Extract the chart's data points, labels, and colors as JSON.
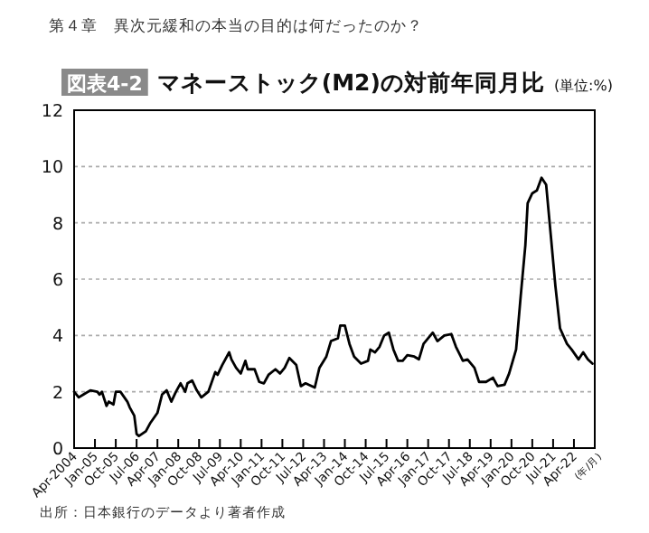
{
  "chart_data": {
    "type": "line",
    "title": "マネーストック(M2)の対前年同月比",
    "ylabel": "(単位:%)",
    "xlabel": "(年/月)",
    "annotations": [
      "第４章　異次元緩和の本当の目的は何だったのか？",
      "図表4-2",
      "出所：日本銀行のデータより著者作成"
    ],
    "x": [
      "2004-04",
      "2004-06",
      "2004-08",
      "2004-11",
      "2005-02",
      "2005-03",
      "2005-04",
      "2005-06",
      "2005-07",
      "2005-09",
      "2005-10",
      "2005-12",
      "2006-03",
      "2006-04",
      "2006-06",
      "2006-07",
      "2006-08",
      "2006-11",
      "2007-01",
      "2007-04",
      "2007-06",
      "2007-08",
      "2007-10",
      "2007-12",
      "2008-02",
      "2008-04",
      "2008-05",
      "2008-07",
      "2008-09",
      "2008-11",
      "2009-02",
      "2009-05",
      "2009-06",
      "2009-08",
      "2009-11",
      "2009-12",
      "2010-02",
      "2010-04",
      "2010-06",
      "2010-07",
      "2010-10",
      "2010-12",
      "2011-02",
      "2011-04",
      "2011-07",
      "2011-09",
      "2011-11",
      "2012-01",
      "2012-04",
      "2012-06",
      "2012-08",
      "2012-12",
      "2013-02",
      "2013-05",
      "2013-07",
      "2013-10",
      "2013-11",
      "2014-01",
      "2014-03",
      "2014-05",
      "2014-08",
      "2014-11",
      "2014-12",
      "2015-02",
      "2015-04",
      "2015-06",
      "2015-08",
      "2015-10",
      "2015-12",
      "2016-02",
      "2016-04",
      "2016-07",
      "2016-09",
      "2016-11",
      "2017-01",
      "2017-03",
      "2017-05",
      "2017-08",
      "2017-11",
      "2018-01",
      "2018-04",
      "2018-06",
      "2018-09",
      "2018-11",
      "2019-02",
      "2019-05",
      "2019-07",
      "2019-10",
      "2019-12",
      "2020-03",
      "2020-05",
      "2020-07",
      "2020-08",
      "2020-10",
      "2020-12",
      "2021-02",
      "2021-04",
      "2021-06",
      "2021-08",
      "2021-10",
      "2022-01",
      "2022-03",
      "2022-06",
      "2022-08",
      "2022-10",
      "2022-12"
    ],
    "series": [
      {
        "color": "#000000",
        "values": [
          2.0,
          1.8,
          1.9,
          2.05,
          2.0,
          1.9,
          2.0,
          1.5,
          1.65,
          1.55,
          2.0,
          2.0,
          1.65,
          1.45,
          1.15,
          0.5,
          0.43,
          0.6,
          0.9,
          1.25,
          1.9,
          2.05,
          1.65,
          2.0,
          2.3,
          2.0,
          2.3,
          2.4,
          2.05,
          1.8,
          2.0,
          2.7,
          2.6,
          2.95,
          3.4,
          3.15,
          2.85,
          2.65,
          3.1,
          2.8,
          2.8,
          2.35,
          2.3,
          2.6,
          2.8,
          2.65,
          2.85,
          3.2,
          2.95,
          2.2,
          2.3,
          2.15,
          2.85,
          3.25,
          3.8,
          3.9,
          4.35,
          4.35,
          3.7,
          3.25,
          3.0,
          3.1,
          3.5,
          3.4,
          3.6,
          4.0,
          4.1,
          3.5,
          3.1,
          3.1,
          3.3,
          3.25,
          3.15,
          3.7,
          3.9,
          4.1,
          3.8,
          4.0,
          4.05,
          3.6,
          3.1,
          3.15,
          2.85,
          2.35,
          2.35,
          2.5,
          2.2,
          2.25,
          2.65,
          3.5,
          5.4,
          7.2,
          8.7,
          9.05,
          9.15,
          9.6,
          9.35,
          7.55,
          5.75,
          4.25,
          3.7,
          3.5,
          3.15,
          3.4,
          3.15,
          3.0
        ]
      }
    ],
    "xlim": [
      "2004-04",
      "2023-01"
    ],
    "xticks": [
      {
        "value": "2004-04",
        "label": "Apr-2004"
      },
      {
        "value": "2005-01",
        "label": "Jan-05"
      },
      {
        "value": "2005-10",
        "label": "Oct-05"
      },
      {
        "value": "2006-07",
        "label": "Jul-06"
      },
      {
        "value": "2007-04",
        "label": "Apr-07"
      },
      {
        "value": "2008-01",
        "label": "Jan-08"
      },
      {
        "value": "2008-10",
        "label": "Oct-08"
      },
      {
        "value": "2009-07",
        "label": "Jul-09"
      },
      {
        "value": "2010-04",
        "label": "Apr-10"
      },
      {
        "value": "2011-01",
        "label": "Jan-11"
      },
      {
        "value": "2011-10",
        "label": "Oct-11"
      },
      {
        "value": "2012-07",
        "label": "Jul-12"
      },
      {
        "value": "2013-04",
        "label": "Apr-13"
      },
      {
        "value": "2014-01",
        "label": "Jan-14"
      },
      {
        "value": "2014-10",
        "label": "Oct-14"
      },
      {
        "value": "2015-07",
        "label": "Jul-15"
      },
      {
        "value": "2016-04",
        "label": "Apr-16"
      },
      {
        "value": "2017-01",
        "label": "Jan-17"
      },
      {
        "value": "2017-10",
        "label": "Oct-17"
      },
      {
        "value": "2018-07",
        "label": "Jul-18"
      },
      {
        "value": "2019-04",
        "label": "Apr-19"
      },
      {
        "value": "2020-01",
        "label": "Jan-20"
      },
      {
        "value": "2020-10",
        "label": "Oct-20"
      },
      {
        "value": "2021-07",
        "label": "Jul-21"
      },
      {
        "value": "2022-04",
        "label": "Apr-22"
      }
    ],
    "ylim": [
      0,
      12
    ],
    "yticks": [
      0,
      2,
      4,
      6,
      8,
      10,
      12
    ],
    "grid": "y",
    "line_style": "solid",
    "marker": "none"
  }
}
